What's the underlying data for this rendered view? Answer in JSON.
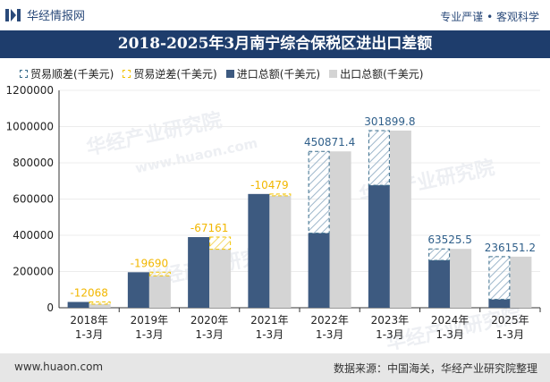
{
  "header": {
    "brand": "华经情报网",
    "slogan": "专业严谨 • 客观科学"
  },
  "title": "2018-2025年3月南宁综合保税区进出口差额",
  "legend": [
    {
      "label": "贸易顺差(千美元)",
      "kind": "surplus",
      "color": "#3a6d8c"
    },
    {
      "label": "贸易逆差(千美元)",
      "kind": "deficit",
      "color": "#f2c200"
    },
    {
      "label": "进口总额(千美元)",
      "kind": "import",
      "color": "#3d5a80"
    },
    {
      "label": "出口总额(千美元)",
      "kind": "export",
      "color": "#d4d4d4"
    }
  ],
  "chart_data": {
    "type": "bar",
    "categories": [
      "2018年\n1-3月",
      "2019年\n1-3月",
      "2020年\n1-3月",
      "2021年\n1-3月",
      "2022年\n1-3月",
      "2023年\n1-3月",
      "2024年\n1-3月",
      "2025年\n1-3月"
    ],
    "series": [
      {
        "name": "进口总额(千美元)",
        "values": [
          32000,
          196000,
          390000,
          628000,
          412000,
          676000,
          262000,
          46000
        ]
      },
      {
        "name": "出口总额(千美元)",
        "values": [
          20000,
          176000,
          323000,
          618000,
          863000,
          978000,
          325000,
          282000
        ]
      }
    ],
    "balance": [
      -12068,
      -19690,
      -67161,
      -10479,
      450871.4,
      301899.8,
      63525.5,
      236151.2
    ],
    "balance_labels": [
      "-12068",
      "-19690",
      "-67161",
      "-10479",
      "450871.4",
      "301899.8",
      "63525.5",
      "236151.2"
    ],
    "ylim": [
      0,
      1200000
    ],
    "yticks": [
      0,
      200000,
      400000,
      600000,
      800000,
      1000000,
      1200000
    ],
    "legend_position": "top"
  },
  "colors": {
    "import": "#3d5a80",
    "export": "#d4d4d4",
    "surplus_line": "#3a6d8c",
    "deficit_line": "#f2c200",
    "surplus_text": "#2f5f8a",
    "deficit_text": "#f2b700"
  },
  "watermarks": [
    "华经产业研究院",
    "www.huaon.com"
  ],
  "footer": {
    "site": "www.huaon.com",
    "source": "数据来源：中国海关，华经产业研究院整理"
  }
}
